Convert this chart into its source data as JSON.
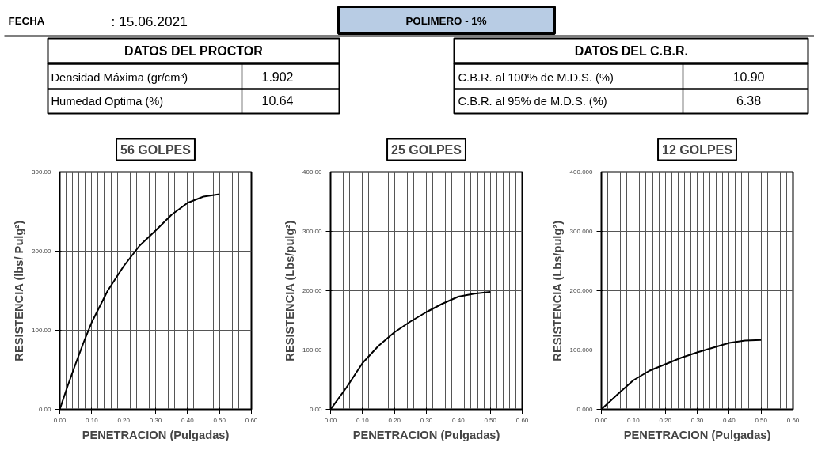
{
  "chart_data": [
    {
      "type": "other",
      "title": "POLIMERO - 1%",
      "annotations": [
        "FECHA",
        ": 15.06.2021",
        "DATOS DEL PROCTOR",
        "Densidad Máxima (gr/cm³)",
        "1.902",
        "Humedad Optima (%)",
        "10.64",
        "DATOS DEL C.B.R.",
        "C.B.R. al 100% de M.D.S. (%)",
        "10.90",
        "C.B.R. al 95% de M.D.S. (%)",
        "6.38"
      ]
    },
    {
      "type": "line",
      "title": "56 GOLPES",
      "xlabel": "PENETRACION (Pulgadas)",
      "ylabel": "RESISTENCIA (lbs/ Pulg²)",
      "x": [
        0,
        0.025,
        0.05,
        0.075,
        0.1,
        0.15,
        0.2,
        0.25,
        0.3,
        0.35,
        0.4,
        0.45,
        0.5
      ],
      "series": [
        {
          "color": "#000000",
          "values": [
            0,
            30,
            58,
            85,
            110,
            150,
            181,
            207,
            226,
            246,
            261,
            269,
            272
          ]
        }
      ],
      "xlim": [
        0,
        0.6
      ],
      "ylim": [
        0,
        300
      ],
      "xticks": [
        {
          "value": 0,
          "label": "0.00"
        },
        {
          "value": 0.1,
          "label": "0.10"
        },
        {
          "value": 0.2,
          "label": "0.20"
        },
        {
          "value": 0.3,
          "label": "0.30"
        },
        {
          "value": 0.4,
          "label": "0.40"
        },
        {
          "value": 0.5,
          "label": "0.50"
        },
        {
          "value": 0.6,
          "label": "0.60"
        }
      ],
      "yticks": [
        {
          "value": 0,
          "label": "0.00"
        },
        {
          "value": 100,
          "label": "100.00"
        },
        {
          "value": 200,
          "label": "200.00"
        },
        {
          "value": 300,
          "label": "300.00"
        }
      ],
      "grid": true,
      "marker": "none",
      "line_style": "solid"
    },
    {
      "type": "line",
      "title": "25 GOLPES",
      "xlabel": "PENETRACION (Pulgadas)",
      "ylabel": "RESISTENCIA (Lbs/pulg²)",
      "x": [
        0,
        0.05,
        0.1,
        0.15,
        0.2,
        0.25,
        0.3,
        0.35,
        0.4,
        0.45,
        0.5
      ],
      "series": [
        {
          "color": "#000000",
          "values": [
            0,
            37,
            78,
            107,
            130,
            148,
            164,
            178,
            190,
            195,
            198
          ]
        }
      ],
      "xlim": [
        0,
        0.6
      ],
      "ylim": [
        0,
        400
      ],
      "xticks": [
        {
          "value": 0,
          "label": "0.00"
        },
        {
          "value": 0.1,
          "label": "0.10"
        },
        {
          "value": 0.2,
          "label": "0.20"
        },
        {
          "value": 0.3,
          "label": "0.30"
        },
        {
          "value": 0.4,
          "label": "0.40"
        },
        {
          "value": 0.5,
          "label": "0.50"
        },
        {
          "value": 0.6,
          "label": "0.60"
        }
      ],
      "yticks": [
        {
          "value": 0,
          "label": "0.00"
        },
        {
          "value": 100,
          "label": "100.00"
        },
        {
          "value": 200,
          "label": "200.00"
        },
        {
          "value": 300,
          "label": "300.00"
        },
        {
          "value": 400,
          "label": "400.00"
        }
      ],
      "grid": true,
      "marker": "none",
      "line_style": "solid"
    },
    {
      "type": "line",
      "title": "12 GOLPES",
      "xlabel": "PENETRACION (Pulgadas)",
      "ylabel": "RESISTENCIA (Lbs/pulg²)",
      "x": [
        0,
        0.05,
        0.1,
        0.15,
        0.2,
        0.25,
        0.3,
        0.35,
        0.4,
        0.45,
        0.5
      ],
      "series": [
        {
          "color": "#000000",
          "values": [
            0,
            25,
            49,
            65,
            76,
            87,
            96,
            104,
            112,
            116,
            117
          ]
        }
      ],
      "xlim": [
        0,
        0.6
      ],
      "ylim": [
        0,
        400
      ],
      "xticks": [
        {
          "value": 0,
          "label": "0.00"
        },
        {
          "value": 0.1,
          "label": "0.10"
        },
        {
          "value": 0.2,
          "label": "0.20"
        },
        {
          "value": 0.3,
          "label": "0.30"
        },
        {
          "value": 0.4,
          "label": "0.40"
        },
        {
          "value": 0.5,
          "label": "0.50"
        },
        {
          "value": 0.6,
          "label": "0.60"
        }
      ],
      "yticks": [
        {
          "value": 0,
          "label": "0.000"
        },
        {
          "value": 100,
          "label": "100.000"
        },
        {
          "value": 200,
          "label": "200.000"
        },
        {
          "value": 300,
          "label": "300.000"
        },
        {
          "value": 400,
          "label": "400.000"
        }
      ],
      "grid": true,
      "marker": "none",
      "line_style": "solid"
    }
  ]
}
